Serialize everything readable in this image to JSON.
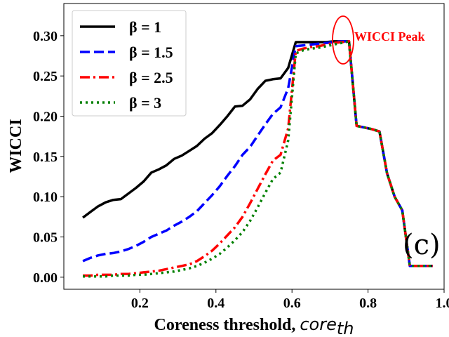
{
  "chart_data": {
    "type": "line",
    "xlabel": "Coreness threshold, ",
    "xlabel_sub": "core_th",
    "xlabel_sub_display": "core",
    "xlabel_sub_index": "th",
    "ylabel": "WICCI",
    "xlim": [
      0.0,
      1.0
    ],
    "ylim": [
      -0.015,
      0.34
    ],
    "x_ticks": [
      0.2,
      0.4,
      0.6,
      0.8,
      1.0
    ],
    "x_tick_labels": [
      "0.2",
      "0.4",
      "0.6",
      "0.8",
      "1.0"
    ],
    "y_ticks": [
      0.0,
      0.05,
      0.1,
      0.15,
      0.2,
      0.25,
      0.3
    ],
    "y_tick_labels": [
      "0.00",
      "0.05",
      "0.10",
      "0.15",
      "0.20",
      "0.25",
      "0.30"
    ],
    "legend_position": "upper-left",
    "annotation": {
      "text": "WICCI Peak",
      "x": 0.75,
      "y": 0.292,
      "color": "#ff0000"
    },
    "panel_label": "(c)",
    "series": [
      {
        "name": "β = 1",
        "color": "#000000",
        "style": "solid",
        "x": [
          0.05,
          0.07,
          0.09,
          0.11,
          0.13,
          0.15,
          0.17,
          0.19,
          0.21,
          0.23,
          0.25,
          0.27,
          0.29,
          0.31,
          0.33,
          0.35,
          0.37,
          0.39,
          0.41,
          0.43,
          0.45,
          0.47,
          0.49,
          0.51,
          0.53,
          0.55,
          0.57,
          0.59,
          0.61,
          0.63,
          0.65,
          0.67,
          0.69,
          0.71,
          0.73,
          0.75,
          0.77,
          0.79,
          0.81,
          0.83,
          0.85,
          0.87,
          0.89,
          0.91,
          0.93,
          0.95,
          0.97
        ],
        "values": [
          0.074,
          0.081,
          0.088,
          0.093,
          0.096,
          0.097,
          0.104,
          0.111,
          0.119,
          0.13,
          0.134,
          0.139,
          0.147,
          0.151,
          0.157,
          0.163,
          0.172,
          0.179,
          0.189,
          0.2,
          0.212,
          0.213,
          0.221,
          0.234,
          0.244,
          0.246,
          0.247,
          0.26,
          0.292,
          0.292,
          0.292,
          0.292,
          0.292,
          0.293,
          0.293,
          0.293,
          0.188,
          0.186,
          0.184,
          0.181,
          0.129,
          0.1,
          0.083,
          0.014,
          0.014,
          0.014,
          0.014
        ]
      },
      {
        "name": "β = 1.5",
        "color": "#0000ff",
        "style": "dashed",
        "x": [
          0.05,
          0.07,
          0.09,
          0.11,
          0.13,
          0.15,
          0.17,
          0.19,
          0.21,
          0.23,
          0.25,
          0.27,
          0.29,
          0.31,
          0.33,
          0.35,
          0.37,
          0.39,
          0.41,
          0.43,
          0.45,
          0.47,
          0.49,
          0.51,
          0.53,
          0.55,
          0.57,
          0.59,
          0.61,
          0.63,
          0.65,
          0.67,
          0.69,
          0.71,
          0.73,
          0.75,
          0.77,
          0.79,
          0.81,
          0.83,
          0.85,
          0.87,
          0.89,
          0.91,
          0.93,
          0.95,
          0.97
        ],
        "values": [
          0.02,
          0.024,
          0.027,
          0.029,
          0.03,
          0.032,
          0.035,
          0.039,
          0.044,
          0.05,
          0.054,
          0.058,
          0.064,
          0.069,
          0.075,
          0.082,
          0.092,
          0.102,
          0.113,
          0.126,
          0.138,
          0.152,
          0.162,
          0.176,
          0.19,
          0.203,
          0.211,
          0.235,
          0.287,
          0.288,
          0.289,
          0.29,
          0.291,
          0.292,
          0.293,
          0.293,
          0.188,
          0.186,
          0.184,
          0.181,
          0.129,
          0.1,
          0.083,
          0.014,
          0.014,
          0.014,
          0.014
        ]
      },
      {
        "name": "β = 2.5",
        "color": "#ff0000",
        "style": "dashdot",
        "x": [
          0.05,
          0.07,
          0.09,
          0.11,
          0.13,
          0.15,
          0.17,
          0.19,
          0.21,
          0.23,
          0.25,
          0.27,
          0.29,
          0.31,
          0.33,
          0.35,
          0.37,
          0.39,
          0.41,
          0.43,
          0.45,
          0.47,
          0.49,
          0.51,
          0.53,
          0.55,
          0.57,
          0.59,
          0.61,
          0.63,
          0.65,
          0.67,
          0.69,
          0.71,
          0.73,
          0.75,
          0.77,
          0.79,
          0.81,
          0.83,
          0.85,
          0.87,
          0.89,
          0.91,
          0.93,
          0.95,
          0.97
        ],
        "values": [
          0.002,
          0.002,
          0.003,
          0.003,
          0.003,
          0.004,
          0.004,
          0.005,
          0.006,
          0.007,
          0.008,
          0.01,
          0.012,
          0.014,
          0.016,
          0.02,
          0.026,
          0.033,
          0.042,
          0.052,
          0.062,
          0.075,
          0.092,
          0.11,
          0.128,
          0.145,
          0.152,
          0.185,
          0.281,
          0.284,
          0.286,
          0.287,
          0.289,
          0.291,
          0.292,
          0.293,
          0.188,
          0.186,
          0.184,
          0.181,
          0.129,
          0.1,
          0.083,
          0.014,
          0.014,
          0.014,
          0.014
        ]
      },
      {
        "name": "β = 3",
        "color": "#008000",
        "style": "dotted",
        "x": [
          0.05,
          0.07,
          0.09,
          0.11,
          0.13,
          0.15,
          0.17,
          0.19,
          0.21,
          0.23,
          0.25,
          0.27,
          0.29,
          0.31,
          0.33,
          0.35,
          0.37,
          0.39,
          0.41,
          0.43,
          0.45,
          0.47,
          0.49,
          0.51,
          0.53,
          0.55,
          0.57,
          0.59,
          0.61,
          0.63,
          0.65,
          0.67,
          0.69,
          0.71,
          0.73,
          0.75,
          0.77,
          0.79,
          0.81,
          0.83,
          0.85,
          0.87,
          0.89,
          0.91,
          0.93,
          0.95,
          0.97
        ],
        "values": [
          0.001,
          0.001,
          0.001,
          0.001,
          0.002,
          0.002,
          0.002,
          0.003,
          0.003,
          0.004,
          0.005,
          0.006,
          0.007,
          0.009,
          0.011,
          0.014,
          0.018,
          0.023,
          0.029,
          0.037,
          0.046,
          0.056,
          0.07,
          0.087,
          0.105,
          0.122,
          0.13,
          0.17,
          0.278,
          0.282,
          0.284,
          0.285,
          0.287,
          0.289,
          0.291,
          0.293,
          0.188,
          0.186,
          0.184,
          0.181,
          0.129,
          0.1,
          0.083,
          0.014,
          0.014,
          0.014,
          0.014
        ]
      }
    ]
  }
}
